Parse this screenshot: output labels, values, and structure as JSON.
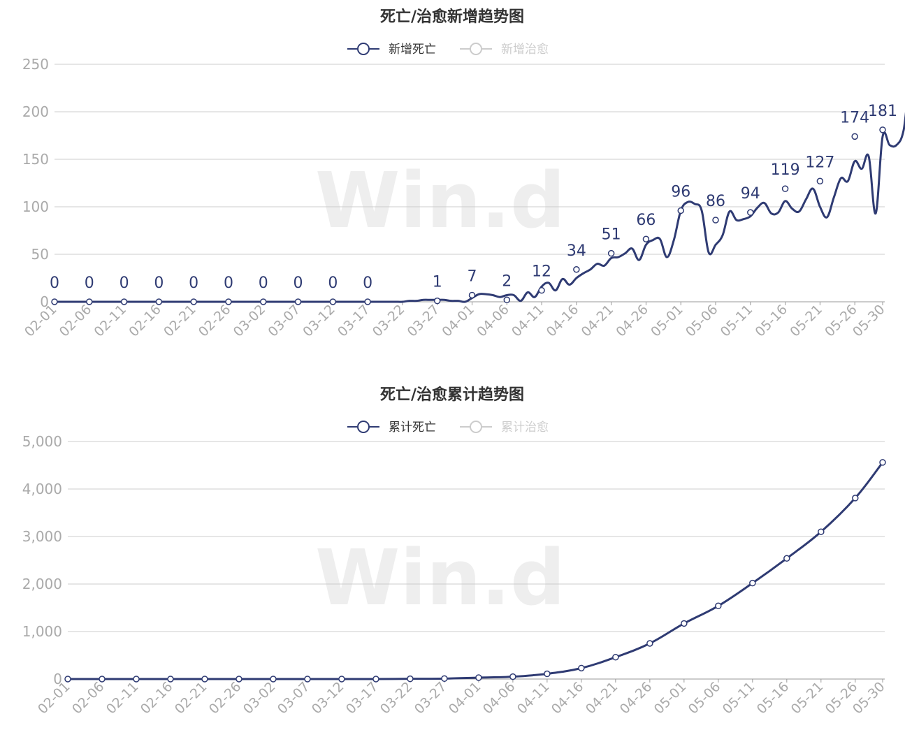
{
  "colors": {
    "series": "#2f3b73",
    "inactive": "#cccccc",
    "axis_text": "#aaaaaa",
    "title": "#333333"
  },
  "watermark": "Win.d",
  "chart_data": [
    {
      "type": "line",
      "title": "死亡/治愈新增趋势图",
      "legend": [
        {
          "name": "新增死亡",
          "active": true
        },
        {
          "name": "新增治愈",
          "active": false
        }
      ],
      "legend_position": "top-center",
      "xlabel": "",
      "ylabel": "",
      "ylim": [
        0,
        250
      ],
      "yticks": [
        0,
        50,
        100,
        150,
        200,
        250
      ],
      "grid": true,
      "x_tick_labels": [
        "02-01",
        "02-06",
        "02-11",
        "02-16",
        "02-21",
        "02-26",
        "03-02",
        "03-07",
        "03-12",
        "03-17",
        "03-22",
        "03-27",
        "04-01",
        "04-06",
        "04-11",
        "04-16",
        "04-21",
        "04-26",
        "05-01",
        "05-06",
        "05-11",
        "05-16",
        "05-21",
        "05-26",
        "05-30"
      ],
      "x_start": "02-01",
      "series": [
        {
          "name": "新增死亡",
          "values": [
            0,
            0,
            0,
            0,
            0,
            0,
            0,
            0,
            0,
            0,
            0,
            0,
            0,
            0,
            0,
            0,
            0,
            0,
            0,
            0,
            0,
            0,
            0,
            0,
            0,
            0,
            0,
            0,
            0,
            0,
            0,
            0,
            0,
            0,
            0,
            0,
            0,
            0,
            0,
            0,
            0,
            0,
            0,
            0,
            0,
            0,
            0,
            0,
            0,
            0,
            0,
            1,
            1,
            2,
            2,
            2,
            2,
            1,
            1,
            0,
            4,
            8,
            8,
            7,
            5,
            7,
            7,
            1,
            10,
            5,
            16,
            20,
            12,
            24,
            18,
            25,
            30,
            34,
            40,
            38,
            46,
            47,
            51,
            56,
            44,
            60,
            65,
            66,
            47,
            65,
            96,
            105,
            103,
            96,
            52,
            60,
            70,
            95,
            86,
            87,
            90,
            99,
            104,
            93,
            94,
            106,
            98,
            95,
            108,
            119,
            100,
            89,
            110,
            130,
            127,
            148,
            140,
            153,
            93,
            174,
            165,
            165,
            180,
            230,
            181
          ],
          "markers": [
            {
              "x": "02-01",
              "value": 0
            },
            {
              "x": "02-06",
              "value": 0
            },
            {
              "x": "02-11",
              "value": 0
            },
            {
              "x": "02-16",
              "value": 0
            },
            {
              "x": "02-21",
              "value": 0
            },
            {
              "x": "02-26",
              "value": 0
            },
            {
              "x": "03-02",
              "value": 0
            },
            {
              "x": "03-07",
              "value": 0
            },
            {
              "x": "03-12",
              "value": 0
            },
            {
              "x": "03-17",
              "value": 0
            },
            {
              "x": "03-27",
              "value": 1
            },
            {
              "x": "04-01",
              "value": 7
            },
            {
              "x": "04-06",
              "value": 2
            },
            {
              "x": "04-11",
              "value": 12
            },
            {
              "x": "04-16",
              "value": 34
            },
            {
              "x": "04-21",
              "value": 51
            },
            {
              "x": "04-26",
              "value": 66
            },
            {
              "x": "05-01",
              "value": 96
            },
            {
              "x": "05-06",
              "value": 86
            },
            {
              "x": "05-11",
              "value": 94
            },
            {
              "x": "05-16",
              "value": 119
            },
            {
              "x": "05-21",
              "value": 127
            },
            {
              "x": "05-26",
              "value": 174
            },
            {
              "x": "05-30",
              "value": 181
            }
          ]
        }
      ]
    },
    {
      "type": "line",
      "title": "死亡/治愈累计趋势图",
      "legend": [
        {
          "name": "累计死亡",
          "active": true
        },
        {
          "name": "累计治愈",
          "active": false
        }
      ],
      "legend_position": "top-center",
      "xlabel": "",
      "ylabel": "",
      "ylim": [
        0,
        5000
      ],
      "yticks": [
        0,
        1000,
        2000,
        3000,
        4000,
        5000
      ],
      "ytick_labels": [
        "0",
        "1,000",
        "2,000",
        "3,000",
        "4,000",
        "5,000"
      ],
      "grid": true,
      "x_tick_labels": [
        "02-01",
        "02-06",
        "02-11",
        "02-16",
        "02-21",
        "02-26",
        "03-02",
        "03-07",
        "03-12",
        "03-17",
        "03-22",
        "03-27",
        "04-01",
        "04-06",
        "04-11",
        "04-16",
        "04-21",
        "04-26",
        "05-01",
        "05-06",
        "05-11",
        "05-16",
        "05-21",
        "05-26",
        "05-30"
      ],
      "series": [
        {
          "name": "累计死亡",
          "points": [
            {
              "x": "02-01",
              "value": 0
            },
            {
              "x": "02-06",
              "value": 0
            },
            {
              "x": "02-11",
              "value": 0
            },
            {
              "x": "02-16",
              "value": 0
            },
            {
              "x": "02-21",
              "value": 0
            },
            {
              "x": "02-26",
              "value": 0
            },
            {
              "x": "03-02",
              "value": 0
            },
            {
              "x": "03-07",
              "value": 0
            },
            {
              "x": "03-12",
              "value": 0
            },
            {
              "x": "03-17",
              "value": 0
            },
            {
              "x": "03-22",
              "value": 5
            },
            {
              "x": "03-27",
              "value": 10
            },
            {
              "x": "04-01",
              "value": 30
            },
            {
              "x": "04-06",
              "value": 50
            },
            {
              "x": "04-11",
              "value": 110
            },
            {
              "x": "04-16",
              "value": 230
            },
            {
              "x": "04-21",
              "value": 460
            },
            {
              "x": "04-26",
              "value": 750
            },
            {
              "x": "05-01",
              "value": 1170
            },
            {
              "x": "05-06",
              "value": 1540
            },
            {
              "x": "05-11",
              "value": 2020
            },
            {
              "x": "05-16",
              "value": 2540
            },
            {
              "x": "05-21",
              "value": 3100
            },
            {
              "x": "05-26",
              "value": 3810
            },
            {
              "x": "05-30",
              "value": 4560
            }
          ]
        }
      ]
    }
  ]
}
